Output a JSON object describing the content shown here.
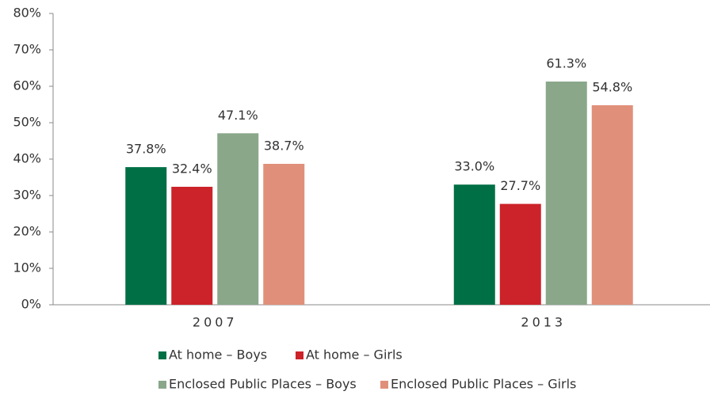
{
  "chart_data": {
    "type": "bar",
    "categories": [
      "2007",
      "2013"
    ],
    "series": [
      {
        "name": "At home – Boys",
        "color": "#006f45",
        "values": [
          37.8,
          33.0
        ],
        "value_labels": [
          "37.8%",
          "33.0%"
        ]
      },
      {
        "name": "At home – Girls",
        "color": "#cc2229",
        "values": [
          32.4,
          27.7
        ],
        "value_labels": [
          "32.4%",
          "27.7%"
        ]
      },
      {
        "name": "Enclosed Public Places – Boys",
        "color": "#8aa78a",
        "values": [
          47.1,
          61.3
        ],
        "value_labels": [
          "47.1%",
          "61.3%"
        ]
      },
      {
        "name": "Enclosed Public Places – Girls",
        "color": "#e0907a",
        "values": [
          38.7,
          54.8
        ],
        "value_labels": [
          "38.7%",
          "54.8%"
        ]
      }
    ],
    "ylim": [
      0,
      80
    ],
    "yticks": [
      {
        "value": 0,
        "label": "0%"
      },
      {
        "value": 10,
        "label": "10%"
      },
      {
        "value": 20,
        "label": "20%"
      },
      {
        "value": 30,
        "label": "30%"
      },
      {
        "value": 40,
        "label": "40%"
      },
      {
        "value": 50,
        "label": "50%"
      },
      {
        "value": 60,
        "label": "60%"
      },
      {
        "value": 70,
        "label": "70%"
      },
      {
        "value": 80,
        "label": "80%"
      }
    ],
    "grid": false
  }
}
